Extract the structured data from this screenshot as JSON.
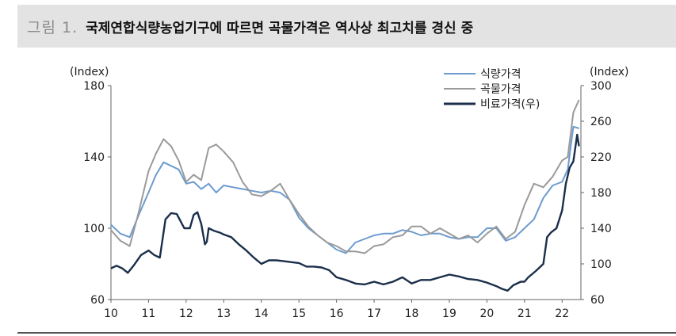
{
  "header": {
    "figure_number": "그림 1.",
    "title": "국제연합식량농업기구에 따르면 곡물가격은 역사상 최고치를 경신 중"
  },
  "chart_data": {
    "type": "line",
    "left_axis": {
      "unit_label": "(Index)",
      "ylim": [
        60,
        180
      ],
      "ticks": [
        "60",
        "100",
        "140",
        "180"
      ]
    },
    "right_axis": {
      "unit_label": "(Index)",
      "ylim": [
        60,
        300
      ],
      "ticks": [
        "60",
        "100",
        "140",
        "180",
        "220",
        "260",
        "300"
      ]
    },
    "x_axis": {
      "xlim": [
        2010.0,
        2022.5
      ],
      "ticks": [
        "10",
        "11",
        "12",
        "13",
        "14",
        "15",
        "16",
        "17",
        "18",
        "19",
        "20",
        "21",
        "22"
      ]
    },
    "legend_position": "top-right",
    "colors": {
      "food": "#6c9bd0",
      "cereal": "#9a9a9a",
      "fertilizer": "#1b2f4a"
    },
    "series": [
      {
        "name": "식량가격",
        "axis": "left",
        "key": "food",
        "x": [
          2010.0,
          2010.25,
          2010.5,
          2010.75,
          2011.0,
          2011.2,
          2011.4,
          2011.6,
          2011.8,
          2012.0,
          2012.2,
          2012.4,
          2012.6,
          2012.8,
          2013.0,
          2013.25,
          2013.5,
          2013.75,
          2014.0,
          2014.25,
          2014.5,
          2014.75,
          2015.0,
          2015.25,
          2015.5,
          2015.75,
          2016.0,
          2016.25,
          2016.5,
          2016.75,
          2017.0,
          2017.25,
          2017.5,
          2017.75,
          2018.0,
          2018.25,
          2018.5,
          2018.75,
          2019.0,
          2019.25,
          2019.5,
          2019.75,
          2020.0,
          2020.25,
          2020.5,
          2020.75,
          2021.0,
          2021.25,
          2021.5,
          2021.75,
          2022.0,
          2022.15,
          2022.3,
          2022.45
        ],
        "y": [
          102,
          97,
          95,
          108,
          120,
          130,
          137,
          135,
          133,
          125,
          126,
          122,
          125,
          120,
          124,
          123,
          122,
          121,
          120,
          121,
          120,
          116,
          106,
          100,
          96,
          92,
          88,
          86,
          92,
          94,
          96,
          97,
          97,
          99,
          98,
          96,
          97,
          97,
          95,
          94,
          95,
          95,
          100,
          100,
          93,
          95,
          100,
          105,
          117,
          124,
          126,
          133,
          157,
          156
        ]
      },
      {
        "name": "곡물가격",
        "axis": "left",
        "key": "cereal",
        "x": [
          2010.0,
          2010.25,
          2010.5,
          2010.75,
          2011.0,
          2011.2,
          2011.4,
          2011.6,
          2011.8,
          2012.0,
          2012.2,
          2012.4,
          2012.6,
          2012.8,
          2013.0,
          2013.25,
          2013.5,
          2013.75,
          2014.0,
          2014.25,
          2014.5,
          2014.75,
          2015.0,
          2015.25,
          2015.5,
          2015.75,
          2016.0,
          2016.25,
          2016.5,
          2016.75,
          2017.0,
          2017.25,
          2017.5,
          2017.75,
          2018.0,
          2018.25,
          2018.5,
          2018.75,
          2019.0,
          2019.25,
          2019.5,
          2019.75,
          2020.0,
          2020.25,
          2020.5,
          2020.75,
          2021.0,
          2021.25,
          2021.5,
          2021.75,
          2022.0,
          2022.15,
          2022.3,
          2022.45
        ],
        "y": [
          99,
          93,
          90,
          110,
          132,
          142,
          150,
          146,
          138,
          126,
          130,
          127,
          145,
          147,
          143,
          137,
          126,
          119,
          118,
          121,
          125,
          116,
          108,
          101,
          96,
          92,
          90,
          87,
          87,
          86,
          90,
          91,
          95,
          96,
          101,
          101,
          97,
          100,
          97,
          94,
          96,
          92,
          97,
          101,
          94,
          98,
          113,
          125,
          123,
          129,
          138,
          140,
          165,
          172
        ]
      },
      {
        "name": "비료가격(우)",
        "axis": "right",
        "key": "fertilizer",
        "x": [
          2010.0,
          2010.15,
          2010.3,
          2010.45,
          2010.6,
          2010.8,
          2011.0,
          2011.15,
          2011.3,
          2011.45,
          2011.6,
          2011.75,
          2011.85,
          2011.95,
          2012.1,
          2012.2,
          2012.3,
          2012.4,
          2012.5,
          2012.55,
          2012.6,
          2012.75,
          2012.9,
          2013.0,
          2013.2,
          2013.4,
          2013.6,
          2013.8,
          2014.0,
          2014.2,
          2014.4,
          2014.6,
          2014.8,
          2015.0,
          2015.2,
          2015.4,
          2015.6,
          2015.8,
          2016.0,
          2016.25,
          2016.5,
          2016.75,
          2017.0,
          2017.25,
          2017.5,
          2017.75,
          2018.0,
          2018.25,
          2018.5,
          2018.75,
          2019.0,
          2019.25,
          2019.5,
          2019.75,
          2020.0,
          2020.25,
          2020.4,
          2020.55,
          2020.7,
          2020.9,
          2021.0,
          2021.1,
          2021.3,
          2021.5,
          2021.6,
          2021.7,
          2021.85,
          2022.0,
          2022.1,
          2022.2,
          2022.3,
          2022.4,
          2022.45
        ],
        "y": [
          95,
          98,
          95,
          90,
          98,
          110,
          115,
          110,
          107,
          150,
          157,
          156,
          148,
          140,
          140,
          155,
          158,
          145,
          122,
          125,
          140,
          137,
          135,
          133,
          130,
          122,
          115,
          107,
          100,
          104,
          104,
          103,
          102,
          101,
          97,
          97,
          96,
          93,
          85,
          82,
          78,
          77,
          80,
          77,
          80,
          85,
          78,
          82,
          82,
          85,
          88,
          86,
          83,
          82,
          79,
          75,
          72,
          70,
          76,
          80,
          80,
          85,
          92,
          100,
          130,
          135,
          140,
          160,
          190,
          208,
          215,
          245,
          232
        ]
      }
    ]
  }
}
